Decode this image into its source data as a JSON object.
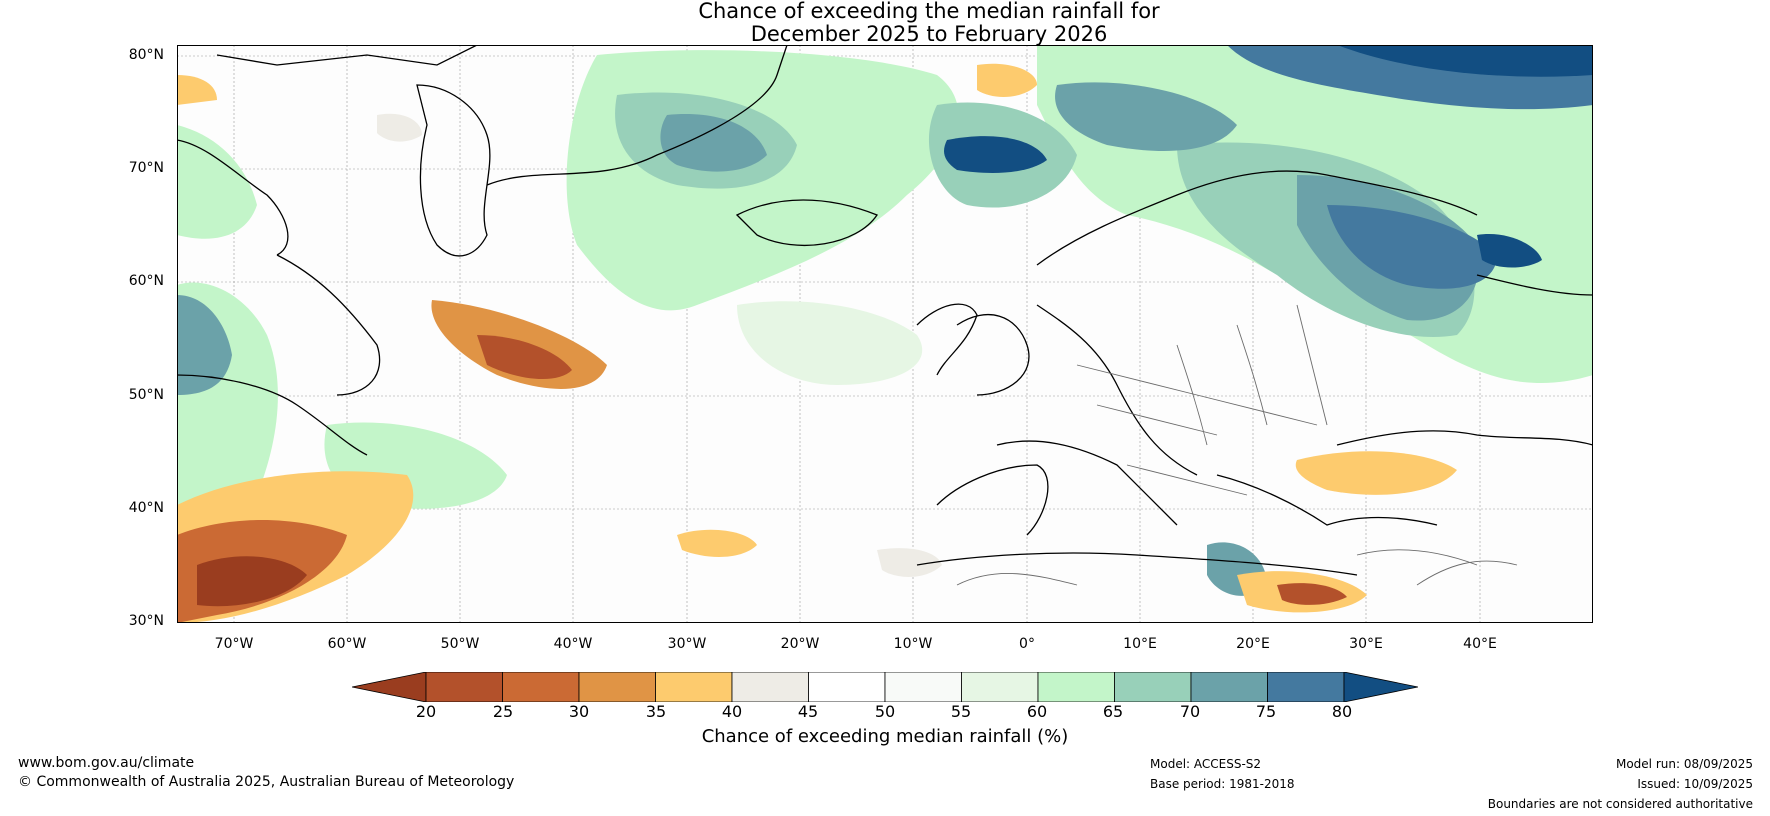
{
  "title": {
    "line1": "Chance of exceeding the median rainfall for",
    "line2": "December 2025 to February 2026"
  },
  "map": {
    "lat_labels": [
      "80°N",
      "70°N",
      "60°N",
      "50°N",
      "40°N",
      "30°N"
    ],
    "lon_labels": [
      "70°W",
      "60°W",
      "50°W",
      "40°W",
      "30°W",
      "20°W",
      "10°W",
      "0°",
      "10°E",
      "20°E",
      "30°E",
      "40°E"
    ],
    "extent": {
      "lon_min": -75,
      "lon_max": 50,
      "lat_min": 30,
      "lat_max": 81
    }
  },
  "colorbar": {
    "ticks": [
      "20",
      "25",
      "30",
      "35",
      "40",
      "45",
      "50",
      "55",
      "60",
      "65",
      "70",
      "75",
      "80"
    ],
    "colors": [
      "#9a3d1f",
      "#b3512b",
      "#cb6a34",
      "#e09445",
      "#fdcb6e",
      "#eeece6",
      "#ffffff",
      "#f8faf8",
      "#e6f6e4",
      "#c3f5c9",
      "#98d0b9",
      "#6ba2a9",
      "#44799f",
      "#124e82"
    ],
    "label": "Chance of exceeding median rainfall (%)"
  },
  "footer": {
    "website": "www.bom.gov.au/climate",
    "copyright": "© Commonwealth of Australia 2025, Australian Bureau of Meteorology",
    "model": "Model: ACCESS-S2",
    "base_period": "Base period: 1981-2018",
    "model_run": "Model run: 08/09/2025",
    "issued": "Issued: 10/09/2025",
    "disclaimer": "Boundaries are not considered authoritative"
  }
}
